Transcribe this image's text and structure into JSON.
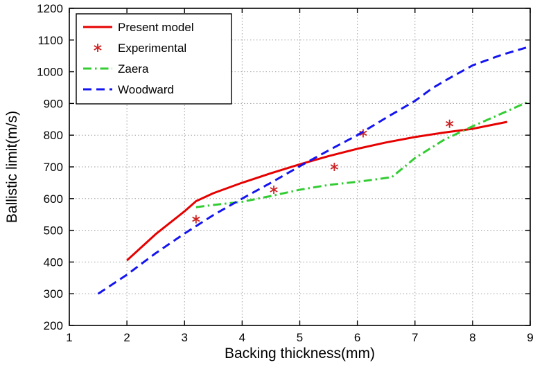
{
  "figure": {
    "background": "#ffffff",
    "text_color": "#000000"
  },
  "chart_data": {
    "type": "line",
    "title": "",
    "xlabel": "Backing thickness(mm)",
    "ylabel": "Ballistic limit(m/s)",
    "xlim": [
      1,
      9
    ],
    "ylim": [
      200,
      1200
    ],
    "xticks": [
      1,
      2,
      3,
      4,
      5,
      6,
      7,
      8,
      9
    ],
    "yticks": [
      200,
      300,
      400,
      500,
      600,
      700,
      800,
      900,
      1000,
      1100,
      1200
    ],
    "grid": true,
    "grid_color": "#9e9e9e",
    "axis_color": "#000000",
    "legend": {
      "position": "top-left",
      "background": "#ffffff",
      "border_color": "#000000"
    },
    "series": [
      {
        "name": "Present model",
        "kind": "line",
        "line_style": "solid",
        "line_width": 3,
        "color": "#e60000",
        "x": [
          2.0,
          2.5,
          3.0,
          3.2,
          3.5,
          4.0,
          4.5,
          5.0,
          5.5,
          6.0,
          6.5,
          7.0,
          7.5,
          8.0,
          8.3,
          8.6
        ],
        "y": [
          405,
          488,
          560,
          592,
          617,
          650,
          680,
          708,
          734,
          757,
          777,
          794,
          808,
          820,
          831,
          842
        ]
      },
      {
        "name": "Experimental",
        "kind": "scatter",
        "marker": "asterisk",
        "color": "#cc2222",
        "x": [
          3.2,
          4.55,
          5.6,
          6.1,
          7.6
        ],
        "y": [
          535,
          628,
          700,
          806,
          836
        ]
      },
      {
        "name": "Zaera",
        "kind": "line",
        "line_style": "dashdot",
        "line_width": 3,
        "color": "#33cc33",
        "x": [
          3.2,
          3.5,
          4.0,
          4.5,
          5.0,
          5.5,
          6.0,
          6.3,
          6.6,
          7.0,
          7.5,
          8.0,
          8.5,
          9.0
        ],
        "y": [
          573,
          580,
          590,
          608,
          628,
          643,
          653,
          660,
          668,
          728,
          785,
          828,
          868,
          908
        ]
      },
      {
        "name": "Woodward",
        "kind": "line",
        "line_style": "dashed",
        "line_width": 3,
        "color": "#1414f0",
        "x": [
          1.5,
          2.0,
          2.5,
          3.0,
          3.5,
          4.0,
          4.5,
          5.0,
          5.5,
          6.0,
          6.5,
          7.0,
          7.3,
          7.6,
          8.0,
          8.5,
          9.0
        ],
        "y": [
          300,
          360,
          428,
          490,
          548,
          600,
          650,
          702,
          752,
          800,
          855,
          908,
          948,
          980,
          1020,
          1053,
          1080
        ]
      }
    ]
  }
}
